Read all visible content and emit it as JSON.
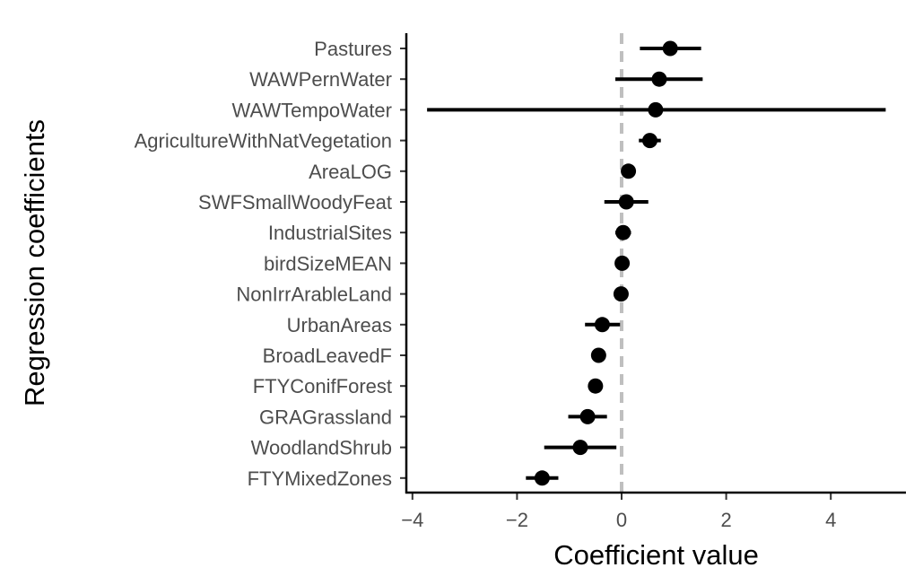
{
  "chart_data": {
    "type": "scatter",
    "subtype": "coefficient-plot",
    "title": "",
    "xlabel": "Coefficient value",
    "ylabel": "Regression coefficients",
    "xlim": [
      -4.1,
      5.55
    ],
    "xticks": [
      -4,
      -2,
      0,
      2,
      4
    ],
    "xtick_labels": [
      "−4",
      "−2",
      "0",
      "2",
      "4"
    ],
    "reference_line_x": 0,
    "grid": false,
    "categories": [
      "Pastures",
      "WAWPernWater",
      "WAWTempoWater",
      "AgricultureWithNatVegetation",
      "AreaLOG",
      "SWFSmallWoodyFeat",
      "IndustrialSites",
      "birdSizeMEAN",
      "NonIrrArableLand",
      "UrbanAreas",
      "BroadLeavedF",
      "FTYConifForest",
      "GRAGrassland",
      "WoodlandShrub",
      "FTYMixedZones"
    ],
    "values": [
      0.93,
      0.72,
      0.65,
      0.54,
      0.13,
      0.09,
      0.03,
      0.01,
      -0.01,
      -0.37,
      -0.44,
      -0.5,
      -0.65,
      -0.79,
      -1.52
    ],
    "lower": [
      0.35,
      -0.12,
      -3.72,
      0.33,
      0.12,
      -0.33,
      -0.12,
      0.0,
      -0.02,
      -0.7,
      -0.55,
      -0.61,
      -1.02,
      -1.48,
      -1.83
    ],
    "upper": [
      1.52,
      1.55,
      5.05,
      0.75,
      0.14,
      0.51,
      0.18,
      0.02,
      0.0,
      -0.03,
      -0.33,
      -0.39,
      -0.28,
      -0.1,
      -1.21
    ]
  },
  "colors": {
    "points": "#000000",
    "reference_line": "#bfbfbf",
    "tick_labels": "#4d4d4d"
  }
}
